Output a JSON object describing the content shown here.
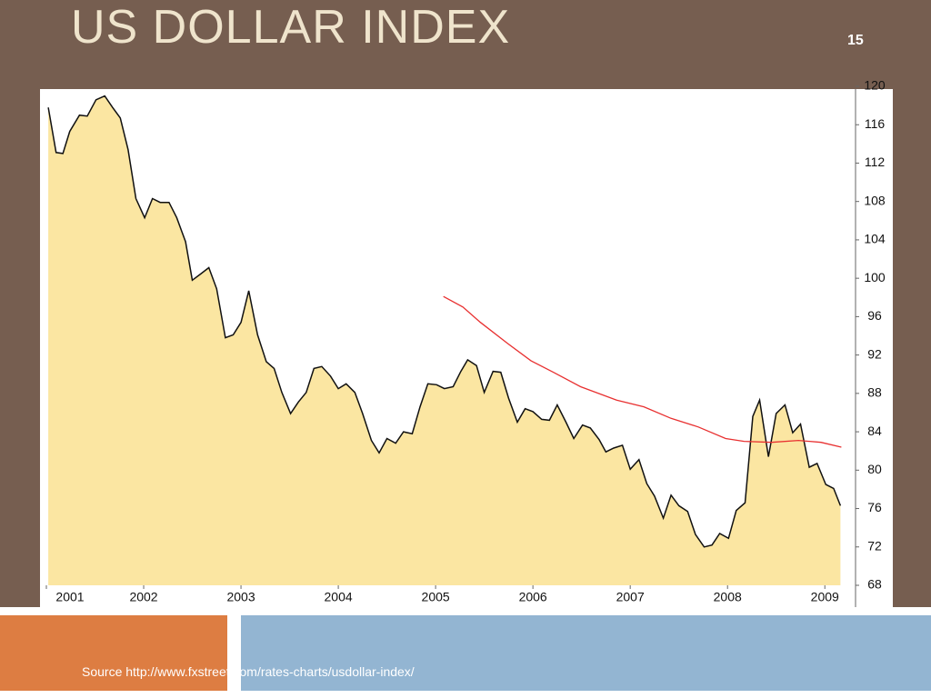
{
  "title": "US DOLLAR INDEX",
  "page_number": "15",
  "source": "Source http://www.fxstreet.com/rates-charts/usdollar-index/",
  "chart_data": {
    "type": "area",
    "xlim": [
      2001,
      2009.25
    ],
    "xticks": [
      2001,
      2002,
      2003,
      2004,
      2005,
      2006,
      2007,
      2008,
      2009
    ],
    "ylim": [
      68,
      120
    ],
    "yticks": [
      68,
      72,
      76,
      80,
      84,
      88,
      92,
      96,
      100,
      104,
      108,
      112,
      116,
      120
    ],
    "series": [
      {
        "type": "area",
        "color": "#fbe6a2",
        "line_color": "#111111",
        "x": [
          2001.02,
          2001.1,
          2001.17,
          2001.24,
          2001.34,
          2001.42,
          2001.51,
          2001.6,
          2001.68,
          2001.76,
          2001.84,
          2001.92,
          2002.01,
          2002.09,
          2002.17,
          2002.26,
          2002.34,
          2002.43,
          2002.5,
          2002.58,
          2002.67,
          2002.75,
          2002.84,
          2002.92,
          2003.0,
          2003.08,
          2003.17,
          2003.26,
          2003.34,
          2003.42,
          2003.51,
          2003.59,
          2003.67,
          2003.75,
          2003.83,
          2003.92,
          2004.0,
          2004.08,
          2004.17,
          2004.25,
          2004.34,
          2004.42,
          2004.5,
          2004.59,
          2004.67,
          2004.76,
          2004.84,
          2004.92,
          2005.01,
          2005.09,
          2005.18,
          2005.26,
          2005.33,
          2005.42,
          2005.5,
          2005.59,
          2005.67,
          2005.75,
          2005.84,
          2005.92,
          2006.0,
          2006.09,
          2006.17,
          2006.25,
          2006.34,
          2006.42,
          2006.51,
          2006.59,
          2006.68,
          2006.75,
          2006.83,
          2006.92,
          2007.0,
          2007.09,
          2007.17,
          2007.25,
          2007.34,
          2007.42,
          2007.5,
          2007.59,
          2007.67,
          2007.76,
          2007.84,
          2007.92,
          2008.01,
          2008.09,
          2008.18,
          2008.26,
          2008.33,
          2008.42,
          2008.5,
          2008.59,
          2008.67,
          2008.75,
          2008.84,
          2008.92,
          2009.01,
          2009.09,
          2009.16
        ],
        "values": [
          117.8,
          113.1,
          113,
          115.3,
          117,
          116.9,
          118.6,
          119,
          117.8,
          116.7,
          113.4,
          108.3,
          106.3,
          108.3,
          107.9,
          107.9,
          106.3,
          103.8,
          99.8,
          100.4,
          101.1,
          98.9,
          93.8,
          94.1,
          95.4,
          98.7,
          94.1,
          91.3,
          90.6,
          88.1,
          85.9,
          87.1,
          88.1,
          90.6,
          90.8,
          89.8,
          88.5,
          89,
          88.1,
          85.9,
          83.1,
          81.8,
          83.3,
          82.8,
          84,
          83.8,
          86.6,
          89,
          88.9,
          88.5,
          88.7,
          90.3,
          91.5,
          90.9,
          88.1,
          90.3,
          90.2,
          87.5,
          85,
          86.4,
          86.1,
          85.3,
          85.2,
          86.8,
          85,
          83.3,
          84.7,
          84.4,
          83.2,
          81.9,
          82.3,
          82.6,
          80.1,
          81.1,
          78.6,
          77.3,
          75,
          77.4,
          76.3,
          75.7,
          73.3,
          72,
          72.2,
          73.4,
          72.9,
          75.8,
          76.6,
          85.6,
          87.3,
          81.4,
          85.9,
          86.8,
          83.9,
          84.8,
          80.3,
          80.7,
          78.5,
          78.1,
          76.3
        ]
      },
      {
        "type": "line",
        "color": "#e83030",
        "x": [
          2005.08,
          2005.28,
          2005.46,
          2005.74,
          2005.98,
          2006.21,
          2006.49,
          2006.86,
          2007.14,
          2007.42,
          2007.7,
          2007.98,
          2008.17,
          2008.45,
          2008.73,
          2008.96,
          2009.17
        ],
        "values": [
          98.1,
          97,
          95.4,
          93.2,
          91.4,
          90.2,
          88.7,
          87.3,
          86.6,
          85.4,
          84.5,
          83.3,
          83,
          82.9,
          83.1,
          82.9,
          82.4
        ]
      }
    ]
  }
}
